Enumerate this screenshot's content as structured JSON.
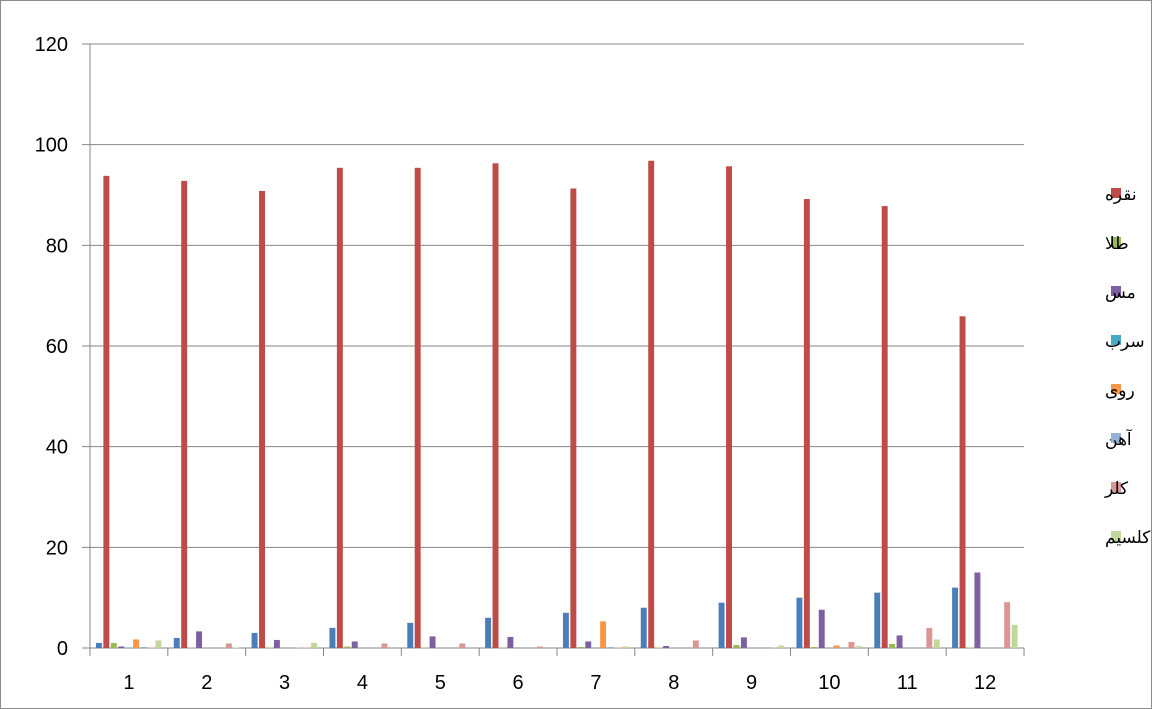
{
  "chart_data": {
    "type": "bar",
    "categories": [
      "1",
      "2",
      "3",
      "4",
      "5",
      "6",
      "7",
      "8",
      "9",
      "10",
      "11",
      "12"
    ],
    "y_ticks": [
      "0",
      "20",
      "40",
      "60",
      "80",
      "100",
      "120"
    ],
    "ylim": [
      0,
      120
    ],
    "grid": true,
    "legend_position": "right",
    "series": [
      {
        "name": "",
        "color": "#4a7ebb",
        "values": [
          1,
          2,
          3,
          4,
          5,
          6,
          7,
          8,
          9,
          10,
          11,
          12
        ]
      },
      {
        "name": "نقره",
        "color": "#be4b48",
        "values": [
          93.8,
          92.8,
          90.8,
          95.4,
          95.4,
          96.3,
          91.3,
          96.8,
          95.7,
          89.2,
          87.8,
          65.9
        ]
      },
      {
        "name": "طلا",
        "color": "#98b954",
        "values": [
          1.0,
          0.1,
          0.1,
          0.3,
          0.1,
          0.1,
          0.2,
          0.1,
          0.6,
          0.2,
          0.8,
          0.1
        ]
      },
      {
        "name": "مس",
        "color": "#7d60a0",
        "values": [
          0.3,
          3.3,
          1.6,
          1.3,
          2.3,
          2.2,
          1.3,
          0.4,
          2.1,
          7.6,
          2.5,
          15.0
        ]
      },
      {
        "name": "سرب",
        "color": "#46aac5",
        "values": [
          0.1,
          0,
          0,
          0,
          0,
          0,
          0,
          0,
          0,
          0,
          0,
          0
        ]
      },
      {
        "name": "روی",
        "color": "#f79646",
        "values": [
          1.7,
          0,
          0,
          0,
          0,
          0,
          5.3,
          0,
          0,
          0.5,
          0,
          0
        ]
      },
      {
        "name": "آهن",
        "color": "#95b3d7",
        "values": [
          0.2,
          0,
          0.1,
          0,
          0,
          0,
          0.2,
          0,
          0,
          0,
          0,
          0
        ]
      },
      {
        "name": "کلر",
        "color": "#d99694",
        "values": [
          0.1,
          0.9,
          0.1,
          0.9,
          0.9,
          0.3,
          0.1,
          1.5,
          0.1,
          1.2,
          4.0,
          9.1
        ]
      },
      {
        "name": "کلسیم",
        "color": "#c3d69b",
        "values": [
          1.5,
          0.1,
          1.0,
          0,
          0,
          0,
          0.3,
          0,
          0.5,
          0.4,
          1.7,
          4.6
        ]
      }
    ]
  }
}
